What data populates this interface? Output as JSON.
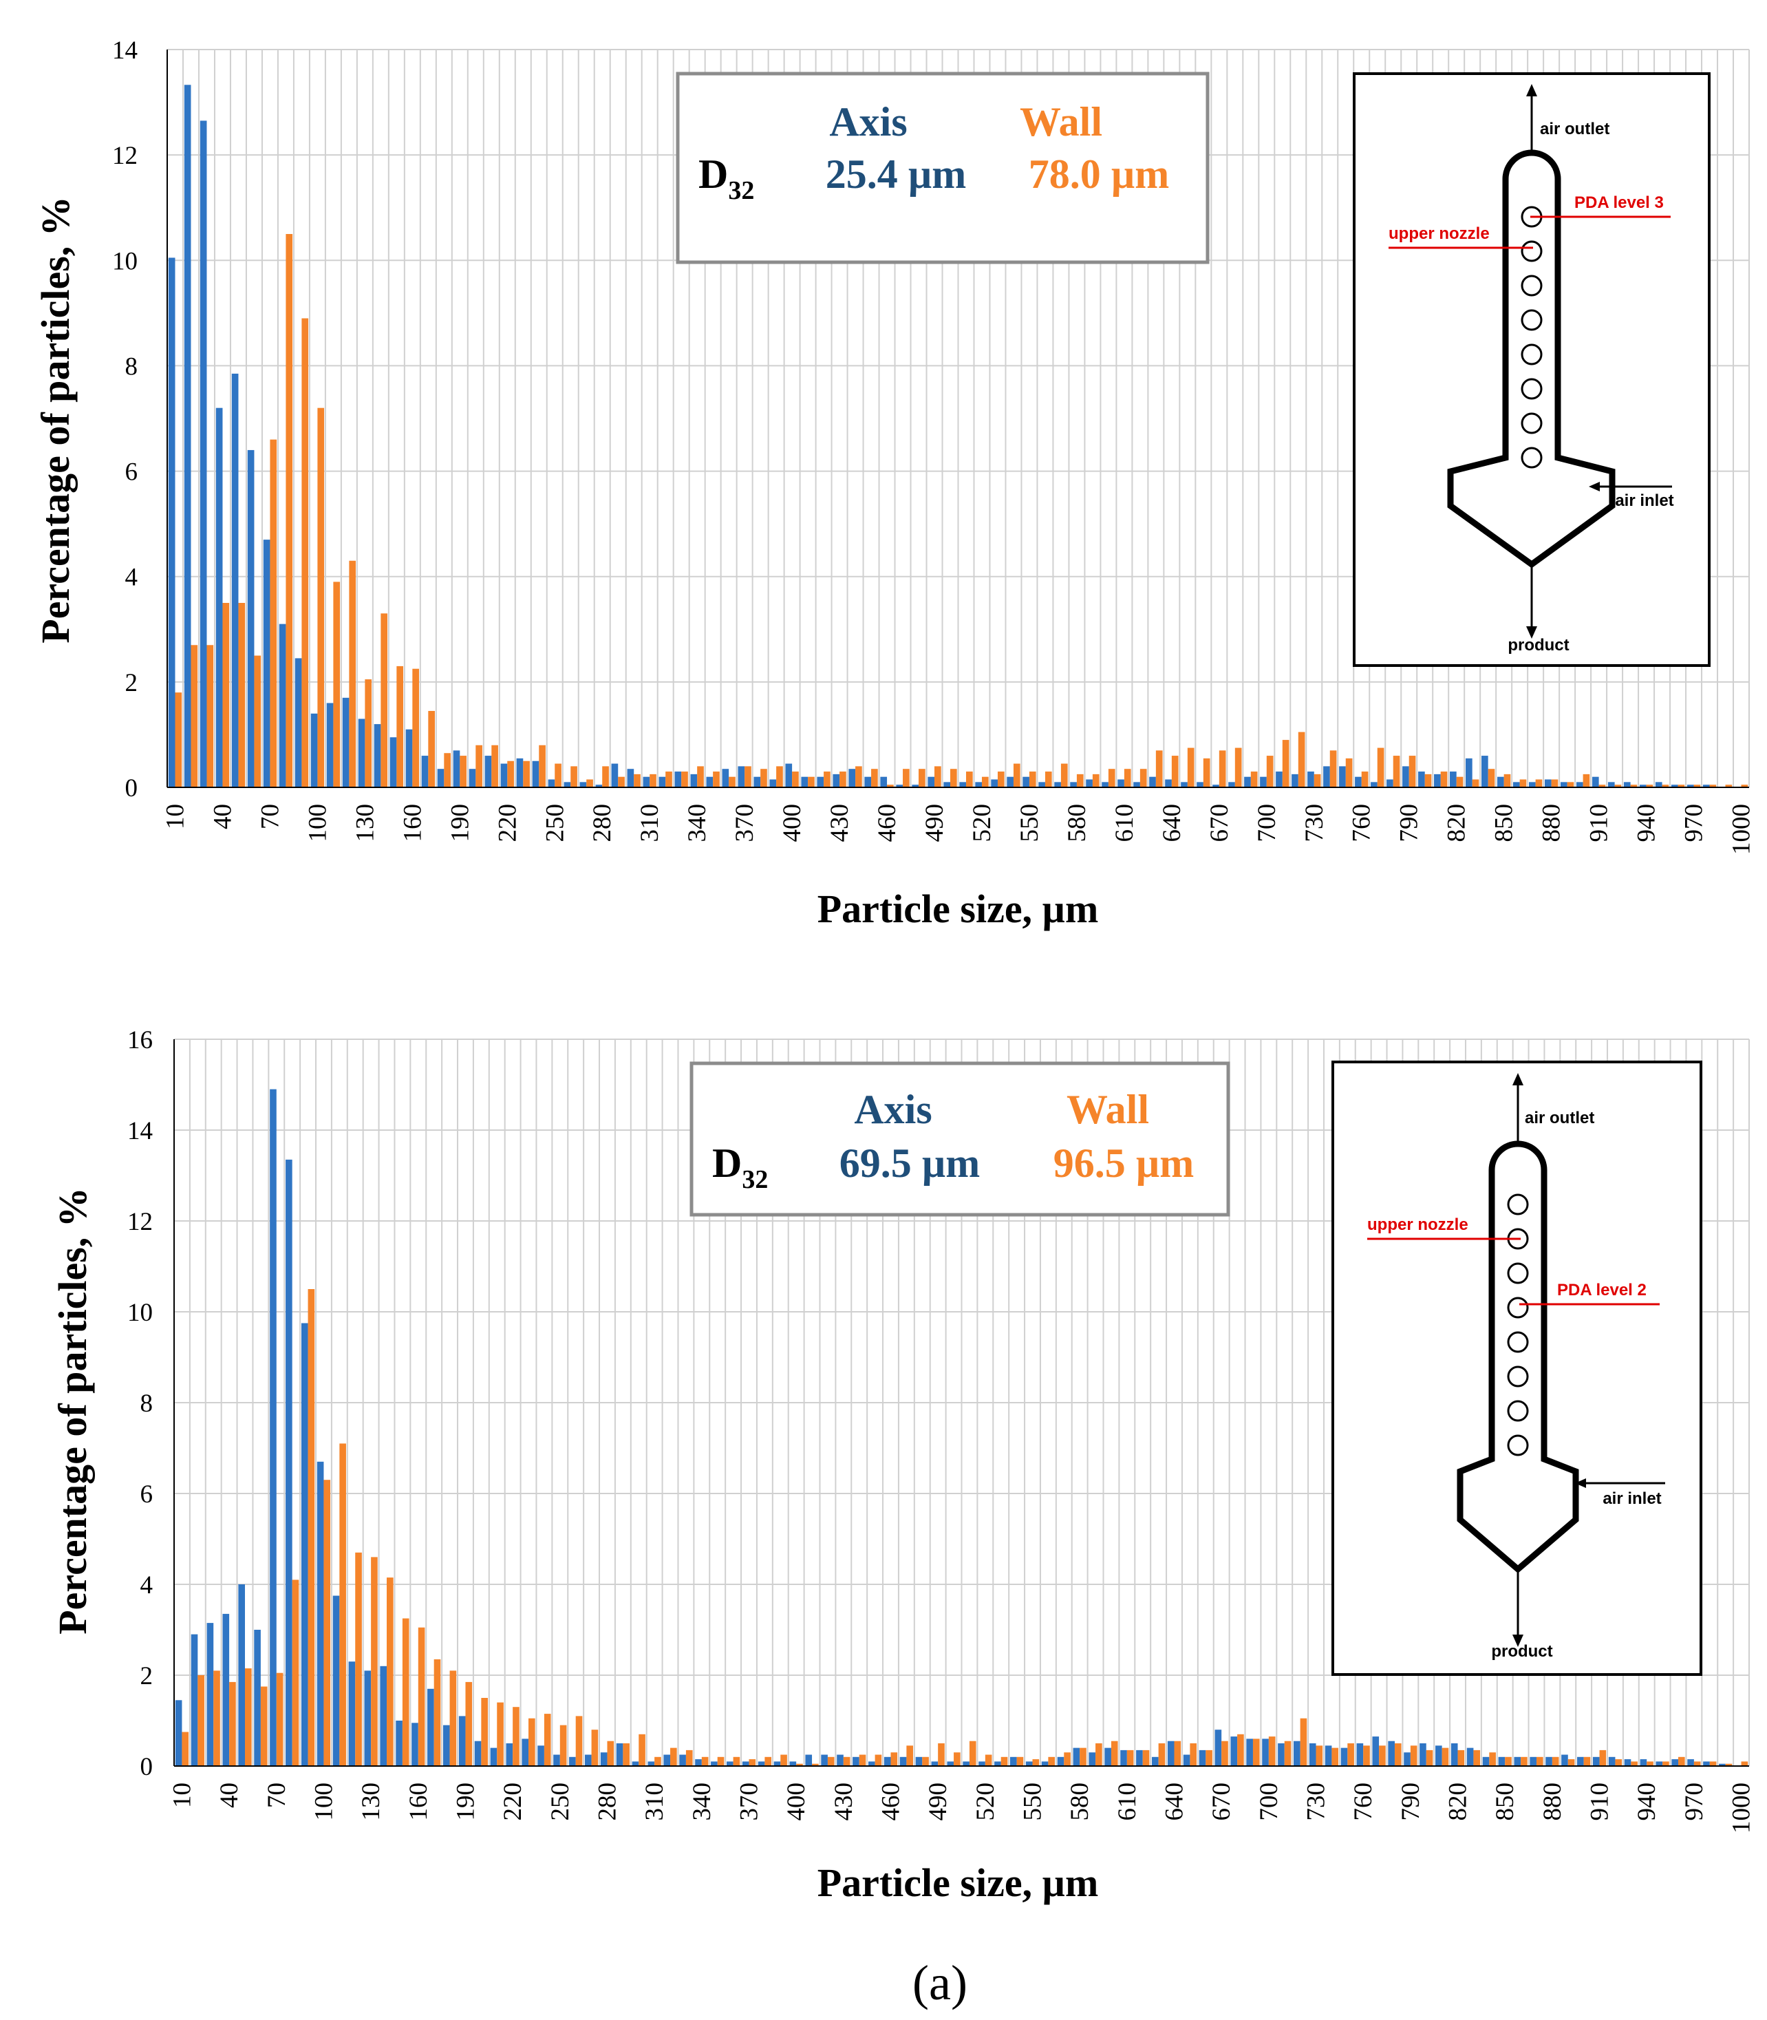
{
  "colors": {
    "axis": "#2f75c4",
    "wall": "#f5842a",
    "axis_text": "#1f4e79",
    "wall_text": "#f5842a",
    "grid": "#d0d0d0",
    "red": "#e00000"
  },
  "caption": "(a)",
  "chart_data": [
    {
      "type": "bar",
      "xlabel": "Particle size, µm",
      "ylabel": "Percentage of particles, %",
      "ylim": [
        0,
        14
      ],
      "yticks": [
        "0",
        "2",
        "4",
        "6",
        "8",
        "10",
        "12",
        "14"
      ],
      "xlim": [
        10,
        1000
      ],
      "bin_step": 10,
      "xtick_labels": [
        "10",
        "40",
        "70",
        "100",
        "130",
        "160",
        "190",
        "220",
        "250",
        "280",
        "310",
        "340",
        "370",
        "400",
        "430",
        "460",
        "490",
        "520",
        "550",
        "580",
        "610",
        "640",
        "670",
        "700",
        "730",
        "760",
        "790",
        "820",
        "850",
        "880",
        "910",
        "940",
        "970",
        "1000"
      ],
      "legend": {
        "series_headers": [
          "Axis",
          "Wall"
        ],
        "d_label": "D",
        "d_sub": "32",
        "axis_value": "25.4 µm",
        "wall_value": "78.0 µm"
      },
      "inset": {
        "top_label": "air outlet",
        "nozzle_label": "upper nozzle",
        "pda_label": "PDA level 3",
        "inlet_label": "air inlet",
        "bottom_label": "product"
      },
      "series": [
        {
          "name": "Axis",
          "values": [
            10.05,
            13.33,
            12.65,
            7.2,
            7.85,
            6.4,
            4.7,
            3.1,
            2.45,
            1.4,
            1.6,
            1.7,
            1.3,
            1.2,
            0.95,
            1.1,
            0.6,
            0.35,
            0.7,
            0.35,
            0.6,
            0.45,
            0.55,
            0.5,
            0.15,
            0.1,
            0.1,
            0.05,
            0.45,
            0.35,
            0.2,
            0.2,
            0.3,
            0.25,
            0.2,
            0.35,
            0.4,
            0.2,
            0.15,
            0.45,
            0.2,
            0.2,
            0.25,
            0.35,
            0.2,
            0.2,
            0.05,
            0.05,
            0.2,
            0.1,
            0.1,
            0.1,
            0.15,
            0.2,
            0.2,
            0.1,
            0.1,
            0.1,
            0.15,
            0.1,
            0.15,
            0.1,
            0.2,
            0.15,
            0.1,
            0.1,
            0.05,
            0.1,
            0.2,
            0.2,
            0.3,
            0.25,
            0.3,
            0.4,
            0.4,
            0.2,
            0.1,
            0.15,
            0.4,
            0.3,
            0.25,
            0.3,
            0.55,
            0.6,
            0.2,
            0.1,
            0.1,
            0.15,
            0.1,
            0.1,
            0.2,
            0.1,
            0.1,
            0.05,
            0.1,
            0.05,
            0.05,
            0.05,
            0.0,
            0.0
          ]
        },
        {
          "name": "Wall",
          "values": [
            1.8,
            2.7,
            2.7,
            3.5,
            3.5,
            2.5,
            6.6,
            10.5,
            8.9,
            7.2,
            3.9,
            4.3,
            2.05,
            3.3,
            2.3,
            2.25,
            1.45,
            0.65,
            0.6,
            0.8,
            0.8,
            0.5,
            0.5,
            0.8,
            0.45,
            0.4,
            0.15,
            0.4,
            0.2,
            0.25,
            0.25,
            0.3,
            0.3,
            0.4,
            0.3,
            0.2,
            0.4,
            0.35,
            0.4,
            0.3,
            0.2,
            0.3,
            0.3,
            0.4,
            0.35,
            0.05,
            0.35,
            0.35,
            0.4,
            0.35,
            0.3,
            0.2,
            0.3,
            0.45,
            0.3,
            0.3,
            0.45,
            0.25,
            0.25,
            0.35,
            0.35,
            0.35,
            0.7,
            0.6,
            0.75,
            0.55,
            0.7,
            0.75,
            0.3,
            0.6,
            0.9,
            1.05,
            0.25,
            0.7,
            0.55,
            0.3,
            0.75,
            0.6,
            0.6,
            0.25,
            0.3,
            0.2,
            0.15,
            0.35,
            0.25,
            0.15,
            0.15,
            0.15,
            0.1,
            0.25,
            0.05,
            0.05,
            0.05,
            0.05,
            0.05,
            0.05,
            0.05,
            0.05,
            0.05,
            0.05
          ]
        }
      ]
    },
    {
      "type": "bar",
      "xlabel": "Particle size, µm",
      "ylabel": "Percentage of particles, %",
      "ylim": [
        0,
        16
      ],
      "yticks": [
        "0",
        "2",
        "4",
        "6",
        "8",
        "10",
        "12",
        "14",
        "16"
      ],
      "xlim": [
        10,
        1000
      ],
      "bin_step": 10,
      "xtick_labels": [
        "10",
        "40",
        "70",
        "100",
        "130",
        "160",
        "190",
        "220",
        "250",
        "280",
        "310",
        "340",
        "370",
        "400",
        "430",
        "460",
        "490",
        "520",
        "550",
        "580",
        "610",
        "640",
        "670",
        "700",
        "730",
        "760",
        "790",
        "820",
        "850",
        "880",
        "910",
        "940",
        "970",
        "1000"
      ],
      "legend": {
        "series_headers": [
          "Axis",
          "Wall"
        ],
        "d_label": "D",
        "d_sub": "32",
        "axis_value": "69.5 µm",
        "wall_value": "96.5 µm"
      },
      "inset": {
        "top_label": "air outlet",
        "nozzle_label": "upper nozzle",
        "pda_label": "PDA level 2",
        "inlet_label": "air inlet",
        "bottom_label": "product"
      },
      "series": [
        {
          "name": "Axis",
          "values": [
            1.45,
            2.9,
            3.15,
            3.35,
            4.0,
            3.0,
            14.9,
            13.35,
            9.75,
            6.7,
            3.75,
            2.3,
            2.1,
            2.2,
            1.0,
            0.95,
            1.7,
            0.9,
            1.1,
            0.55,
            0.4,
            0.5,
            0.6,
            0.45,
            0.25,
            0.2,
            0.25,
            0.3,
            0.5,
            0.1,
            0.1,
            0.25,
            0.25,
            0.15,
            0.1,
            0.1,
            0.1,
            0.1,
            0.1,
            0.1,
            0.25,
            0.25,
            0.25,
            0.2,
            0.1,
            0.2,
            0.2,
            0.2,
            0.1,
            0.1,
            0.1,
            0.1,
            0.1,
            0.2,
            0.1,
            0.1,
            0.2,
            0.4,
            0.3,
            0.4,
            0.35,
            0.35,
            0.2,
            0.55,
            0.25,
            0.35,
            0.8,
            0.65,
            0.6,
            0.6,
            0.5,
            0.55,
            0.5,
            0.45,
            0.4,
            0.5,
            0.65,
            0.55,
            0.3,
            0.5,
            0.45,
            0.5,
            0.4,
            0.2,
            0.2,
            0.2,
            0.2,
            0.2,
            0.25,
            0.2,
            0.2,
            0.2,
            0.15,
            0.15,
            0.1,
            0.15,
            0.15,
            0.1,
            0.05,
            0.0
          ]
        },
        {
          "name": "Wall",
          "values": [
            0.75,
            2.0,
            2.1,
            1.85,
            2.15,
            1.75,
            2.05,
            4.1,
            10.5,
            6.3,
            7.1,
            4.7,
            4.6,
            4.15,
            3.25,
            3.05,
            2.35,
            2.1,
            1.85,
            1.5,
            1.4,
            1.3,
            1.05,
            1.15,
            0.9,
            1.1,
            0.8,
            0.55,
            0.5,
            0.7,
            0.2,
            0.4,
            0.35,
            0.2,
            0.2,
            0.2,
            0.15,
            0.2,
            0.25,
            0.05,
            0.05,
            0.2,
            0.2,
            0.25,
            0.25,
            0.3,
            0.45,
            0.2,
            0.5,
            0.3,
            0.55,
            0.25,
            0.2,
            0.2,
            0.15,
            0.2,
            0.3,
            0.4,
            0.5,
            0.55,
            0.35,
            0.35,
            0.5,
            0.55,
            0.5,
            0.35,
            0.55,
            0.7,
            0.6,
            0.65,
            0.55,
            1.05,
            0.45,
            0.4,
            0.5,
            0.45,
            0.45,
            0.5,
            0.45,
            0.35,
            0.4,
            0.35,
            0.35,
            0.3,
            0.2,
            0.2,
            0.2,
            0.2,
            0.15,
            0.2,
            0.35,
            0.15,
            0.1,
            0.1,
            0.1,
            0.2,
            0.1,
            0.1,
            0.05,
            0.1
          ]
        }
      ]
    }
  ]
}
